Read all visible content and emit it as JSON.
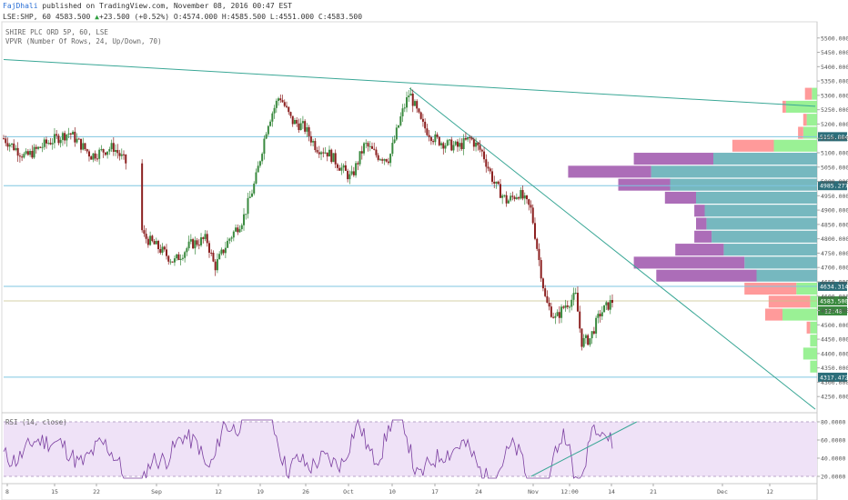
{
  "header": {
    "author": "FajDhali",
    "published": "published on TradingView.com, November 08, 2016 00:47 EST",
    "symbol": "LSE:SHP, 60",
    "last": "4583.500",
    "arrow": "▲",
    "change": "+23.500 (+0.52%)",
    "open": "O:4574.000",
    "high": "H:4585.500",
    "low": "L:4551.000",
    "close": "C:4583.500"
  },
  "legend": {
    "line1": "SHIRE PLC ORD 5P, 60, LSE",
    "line2": "VPVR (Number Of Rows, 24, Up/Down, 70)"
  },
  "rsi_label": "RSI (14, close)",
  "colors": {
    "up": "#3a8a3f",
    "down": "#8b1f1f",
    "trendline": "#3aa796",
    "level": "#7fc6e0",
    "vp_up": "#67b0b8",
    "vp_down": "#a35db0",
    "vp_up_light": "#8ff08a",
    "vp_down_light": "#ff8f8f",
    "rsi_line": "#7b3fa0",
    "rsi_band": "#efe2f7"
  },
  "chart_data": [
    {
      "type": "candlestick",
      "x_ticks": [
        "8",
        "15",
        "22",
        "Sep",
        "12",
        "19",
        "26",
        "Oct",
        "10",
        "17",
        "24",
        "Nov",
        "12:00",
        "14",
        "21",
        "Dec",
        "12"
      ],
      "ylim": [
        4200,
        5550
      ],
      "y_ticks": [
        4250,
        4300,
        4350,
        4400,
        4450,
        4500,
        4550,
        4600,
        4650,
        4700,
        4750,
        4800,
        4850,
        4900,
        4950,
        5000,
        5050,
        5100,
        5150,
        5200,
        5250,
        5300,
        5350,
        5400,
        5450,
        5500
      ],
      "y_tick_labels": [
        "4250.000",
        "4300.000",
        "4350.000",
        "4400.000",
        "4450.000",
        "4500.000",
        "4550.000",
        "4600.000",
        "4650.000",
        "4700.000",
        "4750.000",
        "4800.000",
        "4850.000",
        "4900.000",
        "4950.000",
        "5000.000",
        "5050.000",
        "5100.000",
        "5150.000",
        "5200.000",
        "5250.000",
        "5300.000",
        "5350.000",
        "5400.000",
        "5450.000",
        "5500.000"
      ],
      "horizontal_levels": [
        {
          "value": 5155.884,
          "label": "5155.884"
        },
        {
          "value": 4985.277,
          "label": "4985.277"
        },
        {
          "value": 4634.314,
          "label": "4634.314"
        },
        {
          "value": 4317.472,
          "label": "4317.472"
        }
      ],
      "price_marker": {
        "value": 4583.5,
        "label": "4583.500",
        "countdown": "12:48"
      },
      "trendlines": [
        {
          "from": [
            0,
            5425
          ],
          "to": [
            1,
            5262
          ]
        },
        {
          "from": [
            0.5,
            5325
          ],
          "to": [
            1,
            4206
          ]
        }
      ],
      "price_path": [
        [
          0.0,
          5150
        ],
        [
          0.027,
          5085
        ],
        [
          0.054,
          5135
        ],
        [
          0.081,
          5170
        ],
        [
          0.108,
          5090
        ],
        [
          0.135,
          5120
        ],
        [
          0.152,
          5060
        ],
        [
          0.172,
          4810
        ],
        [
          0.19,
          4770
        ],
        [
          0.21,
          4720
        ],
        [
          0.23,
          4780
        ],
        [
          0.25,
          4800
        ],
        [
          0.26,
          4700
        ],
        [
          0.278,
          4800
        ],
        [
          0.295,
          4870
        ],
        [
          0.31,
          5000
        ],
        [
          0.325,
          5200
        ],
        [
          0.34,
          5300
        ],
        [
          0.355,
          5210
        ],
        [
          0.37,
          5190
        ],
        [
          0.385,
          5120
        ],
        [
          0.4,
          5100
        ],
        [
          0.415,
          5050
        ],
        [
          0.428,
          5010
        ],
        [
          0.445,
          5130
        ],
        [
          0.46,
          5090
        ],
        [
          0.475,
          5080
        ],
        [
          0.49,
          5230
        ],
        [
          0.5,
          5310
        ],
        [
          0.515,
          5200
        ],
        [
          0.53,
          5150
        ],
        [
          0.545,
          5130
        ],
        [
          0.56,
          5120
        ],
        [
          0.575,
          5150
        ],
        [
          0.59,
          5100
        ],
        [
          0.605,
          4990
        ],
        [
          0.62,
          4930
        ],
        [
          0.635,
          4960
        ],
        [
          0.65,
          4900
        ],
        [
          0.66,
          4720
        ],
        [
          0.668,
          4580
        ],
        [
          0.68,
          4520
        ],
        [
          0.692,
          4570
        ],
        [
          0.705,
          4600
        ],
        [
          0.712,
          4440
        ],
        [
          0.722,
          4450
        ],
        [
          0.735,
          4540
        ],
        [
          0.75,
          4583
        ]
      ],
      "volume_profile": {
        "rows": 24,
        "up": [
          0,
          0,
          3,
          18,
          6,
          8,
          25,
          60,
          96,
          85,
          70,
          65,
          64,
          61,
          54,
          42,
          35,
          12,
          4,
          20,
          4,
          4,
          8,
          4
        ],
        "down": [
          0,
          0,
          4,
          2,
          2,
          3,
          24,
          46,
          48,
          30,
          18,
          6,
          6,
          10,
          28,
          64,
          58,
          30,
          24,
          10,
          2,
          0,
          0,
          0
        ]
      }
    },
    {
      "type": "line",
      "name": "RSI (14, close)",
      "ylim": [
        14,
        88
      ],
      "y_ticks": [
        20,
        40,
        60,
        80
      ],
      "y_tick_labels": [
        "20.0000",
        "40.0000",
        "60.0000",
        "80.0000"
      ],
      "band": [
        30,
        70
      ],
      "trendline": {
        "from": [
          0.65,
          20
        ],
        "to": [
          0.78,
          80
        ]
      }
    }
  ]
}
